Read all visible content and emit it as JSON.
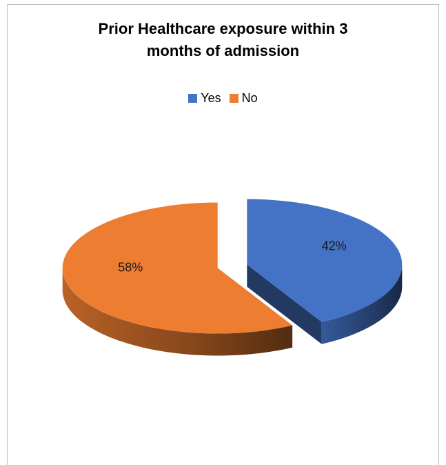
{
  "chart_data": {
    "type": "pie",
    "title_lines": [
      "Prior Healthcare exposure within 3",
      "months of admission"
    ],
    "categories": [
      "Yes",
      "No"
    ],
    "values": [
      42,
      58
    ],
    "labels": [
      "42%",
      "58%"
    ],
    "colors": [
      "#4472C4",
      "#ED7D31"
    ],
    "legend_position": "top",
    "style": "3d-exploded"
  }
}
